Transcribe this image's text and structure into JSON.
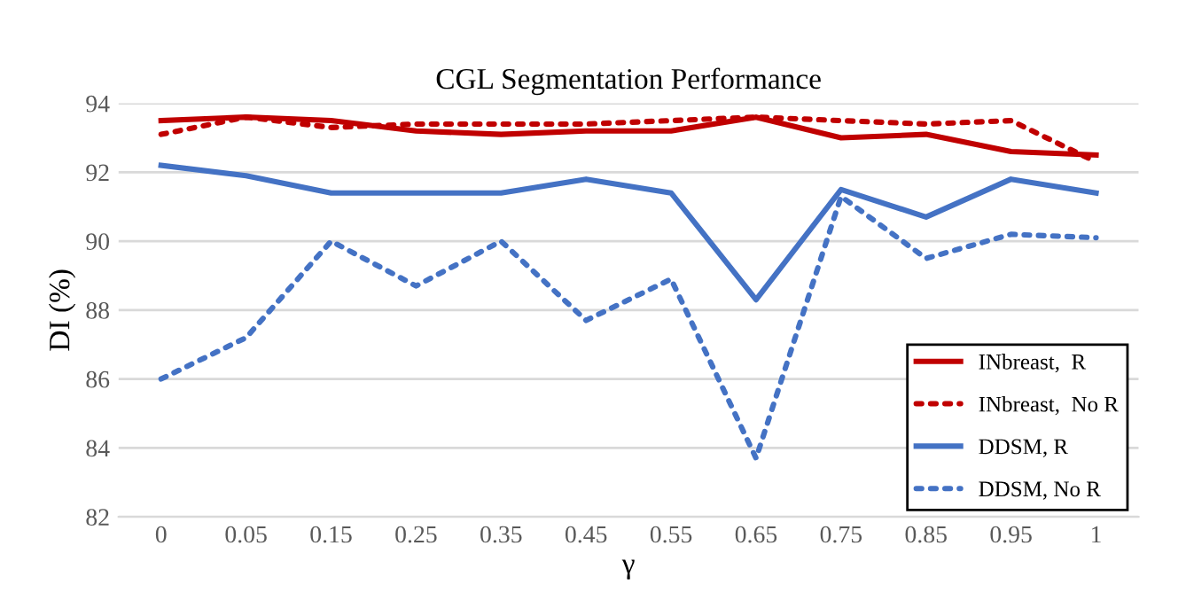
{
  "chart_data": {
    "type": "line",
    "title": "CGL Segmentation Performance",
    "xlabel": "γ",
    "ylabel": "DI (%)",
    "categories": [
      "0",
      "0.05",
      "0.15",
      "0.25",
      "0.35",
      "0.45",
      "0.55",
      "0.65",
      "0.75",
      "0.85",
      "0.95",
      "1"
    ],
    "series": [
      {
        "name": "INbreast,  R",
        "color": "#c00000",
        "line_style": "solid",
        "values": [
          93.5,
          93.6,
          93.5,
          93.2,
          93.1,
          93.2,
          93.2,
          93.6,
          93.0,
          93.1,
          92.6,
          92.5
        ]
      },
      {
        "name": "INbreast,  No R",
        "color": "#c00000",
        "line_style": "dotted",
        "values": [
          93.1,
          93.6,
          93.3,
          93.4,
          93.4,
          93.4,
          93.5,
          93.6,
          93.5,
          93.4,
          93.5,
          92.3
        ]
      },
      {
        "name": "DDSM, R",
        "color": "#4472c4",
        "line_style": "solid",
        "values": [
          92.2,
          91.9,
          91.4,
          91.4,
          91.4,
          91.8,
          91.4,
          88.3,
          91.5,
          90.7,
          91.8,
          91.4
        ]
      },
      {
        "name": "DDSM, No R",
        "color": "#4472c4",
        "line_style": "dotted",
        "values": [
          86.0,
          87.2,
          90.0,
          88.7,
          90.0,
          87.7,
          88.9,
          83.7,
          91.3,
          89.5,
          90.2,
          90.1
        ]
      }
    ],
    "ylim": [
      82,
      94
    ],
    "yticks": [
      82,
      84,
      86,
      88,
      90,
      92,
      94
    ],
    "grid": "y",
    "legend": "bottom right",
    "marker": "none"
  }
}
